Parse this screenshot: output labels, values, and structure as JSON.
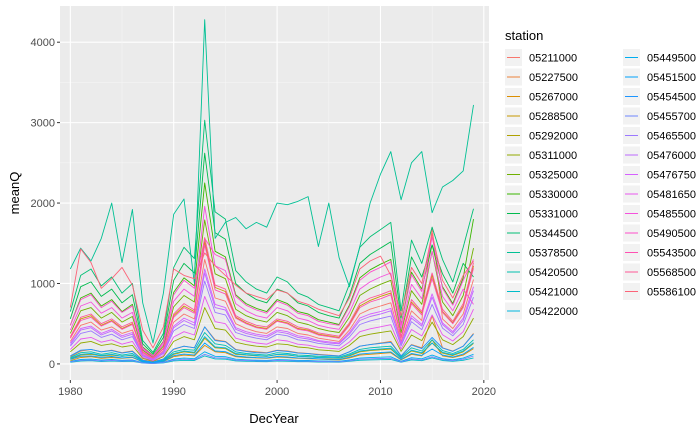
{
  "chart_data": {
    "type": "line",
    "xlabel": "DecYear",
    "ylabel": "meanQ",
    "xlim": [
      1979,
      2020.5
    ],
    "ylim": [
      -200,
      4450
    ],
    "x_ticks": [
      1980,
      1990,
      2000,
      2010,
      2020
    ],
    "y_ticks": [
      0,
      1000,
      2000,
      3000,
      4000
    ],
    "grid": true,
    "legend": {
      "title": "station",
      "placement": "right",
      "columns": 2
    },
    "x": [
      1980,
      1981,
      1982,
      1983,
      1984,
      1985,
      1986,
      1987,
      1988,
      1989,
      1990,
      1991,
      1992,
      1993,
      1994,
      1995,
      1996,
      1997,
      1998,
      1999,
      2000,
      2001,
      2002,
      2003,
      2004,
      2005,
      2006,
      2007,
      2008,
      2009,
      2010,
      2011,
      2012,
      2013,
      2014,
      2015,
      2016,
      2017,
      2018,
      2019
    ],
    "series": [
      {
        "name": "05211000",
        "color": "#F8766D",
        "values": [
          280,
          480,
          520,
          420,
          460,
          380,
          420,
          120,
          60,
          160,
          520,
          620,
          560,
          1300,
          820,
          780,
          500,
          440,
          400,
          380,
          460,
          440,
          380,
          360,
          320,
          300,
          280,
          420,
          620,
          680,
          720,
          760,
          280,
          660,
          540,
          1700,
          560,
          440,
          620,
          1050
        ]
      },
      {
        "name": "05227500",
        "color": "#EC8239",
        "values": [
          90,
          160,
          180,
          150,
          170,
          140,
          160,
          50,
          30,
          60,
          180,
          220,
          200,
          460,
          300,
          280,
          180,
          160,
          150,
          140,
          170,
          160,
          140,
          130,
          120,
          110,
          100,
          150,
          220,
          240,
          260,
          280,
          100,
          240,
          200,
          600,
          200,
          160,
          220,
          380
        ]
      },
      {
        "name": "05267000",
        "color": "#DB8E00",
        "values": [
          40,
          80,
          90,
          70,
          80,
          70,
          80,
          25,
          15,
          30,
          90,
          110,
          100,
          230,
          150,
          140,
          90,
          80,
          75,
          70,
          85,
          80,
          70,
          65,
          60,
          55,
          50,
          75,
          110,
          120,
          130,
          140,
          50,
          120,
          100,
          300,
          100,
          80,
          110,
          190
        ]
      },
      {
        "name": "05288500",
        "color": "#C79800",
        "values": [
          320,
          560,
          600,
          480,
          540,
          440,
          500,
          140,
          70,
          190,
          600,
          720,
          650,
          1520,
          950,
          900,
          580,
          510,
          460,
          440,
          540,
          510,
          440,
          420,
          370,
          350,
          330,
          490,
          720,
          790,
          840,
          880,
          330,
          770,
          630,
          1100,
          650,
          510,
          720,
          1220
        ]
      },
      {
        "name": "05292000",
        "color": "#AFA100",
        "values": [
          60,
          110,
          120,
          100,
          110,
          95,
          105,
          35,
          20,
          40,
          120,
          150,
          135,
          320,
          200,
          190,
          120,
          110,
          100,
          95,
          115,
          110,
          95,
          90,
          80,
          75,
          70,
          100,
          150,
          165,
          175,
          185,
          70,
          160,
          130,
          260,
          135,
          105,
          150,
          255
        ]
      },
      {
        "name": "05311000",
        "color": "#93AA00",
        "values": [
          150,
          260,
          280,
          230,
          250,
          210,
          230,
          70,
          35,
          90,
          280,
          340,
          300,
          700,
          440,
          420,
          270,
          240,
          220,
          210,
          250,
          240,
          210,
          200,
          175,
          165,
          155,
          230,
          340,
          370,
          390,
          410,
          155,
          360,
          290,
          520,
          300,
          240,
          340,
          570
        ]
      },
      {
        "name": "05325000",
        "color": "#6FB000",
        "values": [
          380,
          660,
          700,
          570,
          640,
          520,
          590,
          170,
          85,
          220,
          710,
          850,
          770,
          1790,
          1120,
          1060,
          680,
          600,
          550,
          520,
          640,
          600,
          520,
          490,
          440,
          410,
          390,
          580,
          850,
          930,
          990,
          1040,
          390,
          910,
          740,
          1400,
          770,
          600,
          850,
          1440
        ]
      },
      {
        "name": "05330000",
        "color": "#39B600",
        "values": [
          480,
          820,
          880,
          720,
          800,
          650,
          740,
          210,
          105,
          280,
          890,
          1070,
          970,
          2250,
          1400,
          1330,
          860,
          750,
          690,
          650,
          800,
          750,
          650,
          620,
          550,
          520,
          490,
          730,
          1070,
          1170,
          1240,
          1300,
          490,
          1140,
          930,
          1480,
          960,
          750,
          1070,
          1800
        ]
      },
      {
        "name": "05331000",
        "color": "#00BB4E",
        "values": [
          560,
          960,
          1020,
          840,
          930,
          760,
          860,
          250,
          125,
          330,
          1040,
          1250,
          1130,
          2620,
          1630,
          1550,
          1000,
          880,
          800,
          760,
          930,
          880,
          760,
          720,
          640,
          600,
          570,
          850,
          1250,
          1360,
          1440,
          1520,
          570,
          1330,
          1080,
          1480,
          1120,
          880,
          1250,
          1080
        ]
      },
      {
        "name": "05344500",
        "color": "#00BF74",
        "values": [
          650,
          1100,
          1180,
          970,
          1080,
          880,
          1000,
          290,
          145,
          380,
          1200,
          1450,
          1310,
          3030,
          1890,
          1800,
          1160,
          1020,
          930,
          880,
          1080,
          1020,
          880,
          830,
          740,
          700,
          660,
          990,
          1450,
          1580,
          1670,
          1760,
          660,
          1540,
          1250,
          1700,
          1300,
          1020,
          1450,
          1930
        ]
      },
      {
        "name": "05378500",
        "color": "#00C094",
        "values": [
          1180,
          1440,
          1280,
          1560,
          2000,
          1260,
          1920,
          760,
          260,
          880,
          1860,
          2050,
          1000,
          4280,
          1560,
          1760,
          1820,
          1680,
          1760,
          1700,
          2000,
          1980,
          2020,
          2080,
          1460,
          2000,
          1320,
          960,
          1460,
          2000,
          2360,
          2640,
          2040,
          2500,
          2640,
          1880,
          2200,
          2280,
          2400,
          3220
        ]
      },
      {
        "name": "05420500",
        "color": "#00C0AF",
        "values": [
          80,
          140,
          150,
          120,
          140,
          110,
          130,
          40,
          20,
          50,
          150,
          180,
          170,
          390,
          250,
          230,
          150,
          130,
          120,
          110,
          140,
          130,
          110,
          105,
          95,
          90,
          85,
          125,
          180,
          200,
          210,
          220,
          85,
          200,
          160,
          300,
          165,
          130,
          180,
          300
        ]
      },
      {
        "name": "05421000",
        "color": "#00BCC9",
        "values": [
          20,
          35,
          40,
          30,
          35,
          30,
          32,
          10,
          5,
          12,
          38,
          45,
          42,
          100,
          62,
          58,
          38,
          33,
          30,
          28,
          35,
          33,
          28,
          27,
          24,
          22,
          21,
          32,
          45,
          50,
          53,
          55,
          21,
          50,
          40,
          75,
          42,
          33,
          45,
          75
        ]
      },
      {
        "name": "05422000",
        "color": "#00B6DF",
        "values": [
          70,
          120,
          130,
          105,
          120,
          95,
          110,
          35,
          18,
          45,
          130,
          160,
          145,
          340,
          210,
          200,
          130,
          115,
          105,
          95,
          120,
          115,
          95,
          90,
          80,
          78,
          74,
          110,
          160,
          175,
          185,
          195,
          74,
          170,
          140,
          260,
          145,
          115,
          160,
          265
        ]
      },
      {
        "name": "05449500",
        "color": "#00ADF0",
        "values": [
          30,
          55,
          60,
          48,
          55,
          45,
          50,
          15,
          8,
          20,
          60,
          72,
          65,
          150,
          95,
          90,
          58,
          51,
          46,
          44,
          54,
          51,
          44,
          42,
          37,
          35,
          33,
          49,
          72,
          79,
          84,
          88,
          33,
          77,
          63,
          110,
          65,
          51,
          72,
          120
        ]
      },
      {
        "name": "05451500",
        "color": "#00A2FC",
        "values": [
          55,
          95,
          100,
          82,
          92,
          75,
          85,
          26,
          13,
          33,
          102,
          122,
          110,
          260,
          160,
          152,
          98,
          86,
          78,
          75,
          92,
          86,
          75,
          71,
          63,
          59,
          56,
          84,
          122,
          133,
          141,
          149,
          56,
          130,
          106,
          185,
          110,
          86,
          122,
          205
        ]
      },
      {
        "name": "05454500",
        "color": "#1C95FF",
        "values": [
          100,
          170,
          180,
          150,
          165,
          135,
          155,
          45,
          23,
          60,
          185,
          220,
          200,
          460,
          290,
          275,
          175,
          155,
          140,
          135,
          165,
          155,
          135,
          128,
          113,
          106,
          100,
          150,
          220,
          240,
          255,
          268,
          100,
          235,
          190,
          330,
          198,
          155,
          220,
          370
        ]
      },
      {
        "name": "05455700",
        "color": "#6F87FF",
        "values": [
          25,
          45,
          48,
          38,
          44,
          36,
          40,
          12,
          6,
          16,
          48,
          58,
          52,
          120,
          76,
          72,
          46,
          41,
          37,
          35,
          43,
          41,
          35,
          34,
          30,
          28,
          26,
          39,
          58,
          63,
          67,
          70,
          26,
          62,
          50,
          88,
          52,
          41,
          58,
          98
        ]
      },
      {
        "name": "05465500",
        "color": "#9B78FF",
        "values": [
          220,
          380,
          410,
          330,
          370,
          300,
          340,
          100,
          50,
          130,
          410,
          490,
          440,
          1030,
          640,
          610,
          390,
          350,
          320,
          300,
          370,
          350,
          300,
          285,
          255,
          240,
          225,
          335,
          490,
          535,
          565,
          595,
          225,
          525,
          425,
          740,
          445,
          350,
          490,
          830
        ]
      },
      {
        "name": "05476000",
        "color": "#BC6BFF",
        "values": [
          240,
          420,
          450,
          360,
          410,
          330,
          370,
          110,
          55,
          140,
          450,
          540,
          480,
          1130,
          700,
          670,
          430,
          380,
          350,
          330,
          400,
          380,
          330,
          310,
          280,
          260,
          250,
          370,
          540,
          590,
          620,
          660,
          250,
          570,
          470,
          830,
          490,
          380,
          540,
          910
        ]
      },
      {
        "name": "05476750",
        "color": "#D560FF",
        "values": [
          260,
          440,
          470,
          380,
          430,
          350,
          390,
          115,
          58,
          150,
          470,
          570,
          510,
          1180,
          740,
          700,
          450,
          400,
          370,
          350,
          420,
          400,
          350,
          330,
          290,
          275,
          260,
          390,
          570,
          620,
          650,
          690,
          260,
          600,
          490,
          870,
          510,
          400,
          570,
          960
        ]
      },
      {
        "name": "05481650",
        "color": "#E858EF",
        "values": [
          180,
          310,
          330,
          270,
          300,
          245,
          280,
          82,
          41,
          105,
          335,
          400,
          360,
          840,
          525,
          500,
          320,
          285,
          260,
          245,
          300,
          285,
          245,
          233,
          207,
          195,
          184,
          273,
          400,
          436,
          462,
          487,
          184,
          428,
          348,
          610,
          362,
          285,
          400,
          680
        ]
      },
      {
        "name": "05485500",
        "color": "#F551DD",
        "values": [
          420,
          720,
          770,
          630,
          700,
          570,
          640,
          185,
          93,
          245,
          780,
          930,
          840,
          1960,
          1220,
          1160,
          750,
          660,
          600,
          570,
          700,
          660,
          570,
          540,
          480,
          450,
          430,
          640,
          930,
          1020,
          1080,
          1130,
          430,
          990,
          810,
          1400,
          840,
          660,
          930,
          740
        ]
      },
      {
        "name": "05490500",
        "color": "#FD4EC9",
        "values": [
          480,
          800,
          860,
          700,
          780,
          640,
          720,
          200,
          100,
          270,
          860,
          1040,
          940,
          1560,
          1360,
          1300,
          840,
          730,
          670,
          630,
          780,
          730,
          630,
          600,
          530,
          500,
          480,
          710,
          1040,
          1140,
          1200,
          1270,
          480,
          1110,
          900,
          1580,
          940,
          730,
          1040,
          1300
        ]
      },
      {
        "name": "05543500",
        "color": "#FF50B2",
        "values": [
          320,
          540,
          580,
          470,
          530,
          430,
          490,
          140,
          70,
          185,
          580,
          700,
          630,
          1480,
          920,
          870,
          570,
          500,
          450,
          430,
          530,
          500,
          430,
          410,
          360,
          340,
          320,
          480,
          700,
          770,
          810,
          860,
          320,
          750,
          610,
          1060,
          640,
          500,
          700,
          1190
        ]
      },
      {
        "name": "05568500",
        "color": "#FF5897",
        "values": [
          340,
          580,
          620,
          500,
          560,
          460,
          520,
          150,
          75,
          195,
          620,
          750,
          670,
          1570,
          980,
          930,
          600,
          530,
          480,
          460,
          560,
          530,
          460,
          435,
          385,
          365,
          345,
          510,
          750,
          820,
          860,
          910,
          345,
          800,
          650,
          1130,
          680,
          530,
          750,
          1260
        ]
      },
      {
        "name": "05586100",
        "color": "#FC6378",
        "values": [
          700,
          1430,
          1260,
          940,
          1060,
          1200,
          980,
          420,
          200,
          460,
          1180,
          1100,
          1060,
          1380,
          1220,
          1100,
          980,
          880,
          840,
          800,
          920,
          880,
          780,
          740,
          680,
          640,
          600,
          820,
          1180,
          1280,
          1340,
          1100,
          600,
          1200,
          1000,
          1620,
          1040,
          820,
          1100,
          1280
        ]
      }
    ]
  }
}
